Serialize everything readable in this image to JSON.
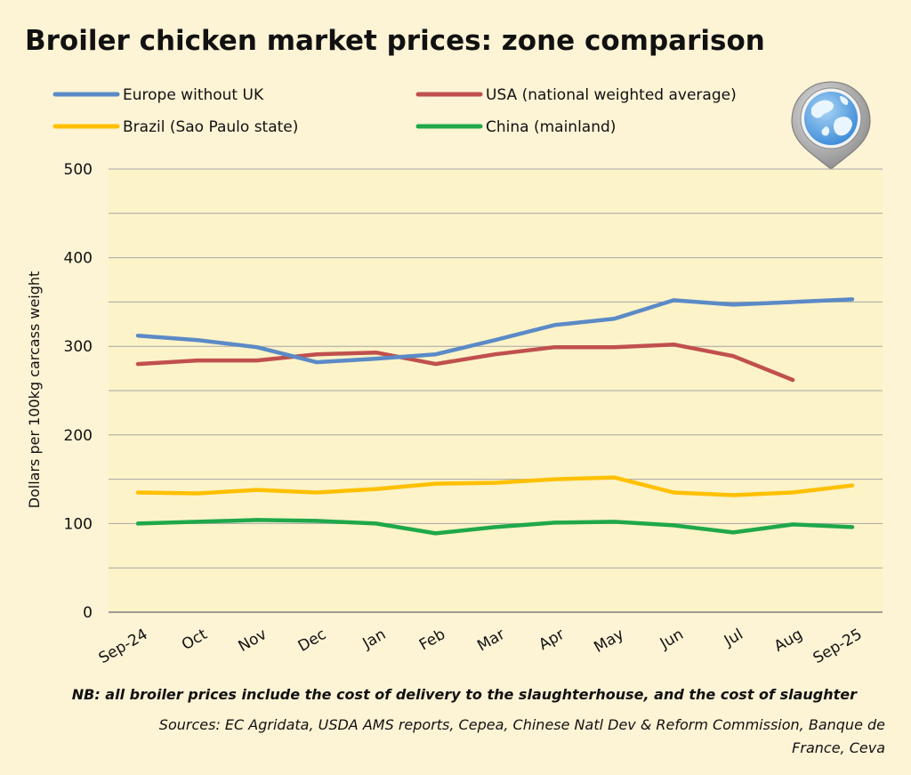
{
  "chart_data": {
    "type": "line",
    "title": "Broiler chicken market prices: zone comparison",
    "ylabel": "Dollars per 100kg carcass weight",
    "xlabel": "",
    "ylim": [
      0,
      500
    ],
    "yticks": [
      0,
      100,
      200,
      300,
      400,
      500
    ],
    "grid": true,
    "legend_position": "top",
    "categories": [
      "Sep-24",
      "Oct",
      "Nov",
      "Dec",
      "Jan",
      "Feb",
      "Mar",
      "Apr",
      "May",
      "Jun",
      "Jul",
      "Aug",
      "Sep-25"
    ],
    "series": [
      {
        "name": "Europe without UK",
        "color": "#5b8ac6",
        "values": [
          312,
          307,
          299,
          282,
          286,
          291,
          307,
          324,
          331,
          352,
          347,
          350,
          353
        ]
      },
      {
        "name": "USA (national weighted average)",
        "color": "#c0504d",
        "values": [
          280,
          284,
          284,
          291,
          293,
          280,
          291,
          299,
          299,
          302,
          289,
          262,
          null
        ]
      },
      {
        "name": "Brazil (Sao Paulo state)",
        "color": "#ffc000",
        "values": [
          135,
          134,
          138,
          135,
          139,
          145,
          146,
          150,
          152,
          135,
          132,
          135,
          143
        ]
      },
      {
        "name": "China (mainland)",
        "color": "#1fa84a",
        "values": [
          100,
          102,
          104,
          103,
          100,
          89,
          96,
          101,
          102,
          98,
          90,
          99,
          96
        ]
      }
    ],
    "annotations": {
      "note": "NB: all broiler prices include the cost of delivery to the slaughterhouse, and the cost of slaughter",
      "sources_line1": "Sources: EC Agridata, USDA AMS reports, Cepea, Chinese Natl Dev & Reform Commission, Banque de",
      "sources_line2": "France, Ceva"
    }
  },
  "icons": {
    "logo": "globe-pin-icon"
  },
  "colors": {
    "page_background": "#fdf3d5",
    "plot_background": "#fdf3c9",
    "gridline": "#a6a6a6"
  }
}
